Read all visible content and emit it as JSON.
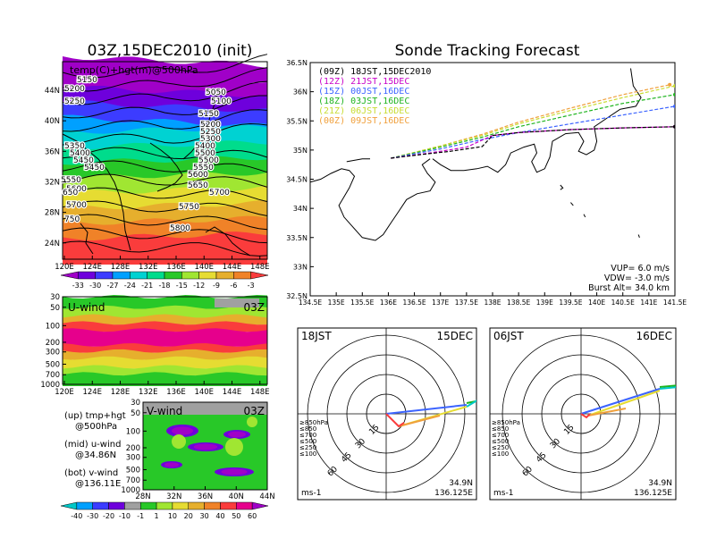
{
  "map500": {
    "title": "03Z,15DEC2010 (init)",
    "subtitle": "temp(C)+hgt(m)@500hPa",
    "xticks": [
      "120E",
      "124E",
      "128E",
      "132E",
      "136E",
      "140E",
      "144E",
      "148E"
    ],
    "yticks": [
      "44N",
      "40N",
      "36N",
      "32N",
      "28N",
      "24N"
    ],
    "contours": [
      "5150",
      "5200",
      "5250",
      "5050",
      "5100",
      "5150",
      "5200",
      "5250",
      "5300",
      "5350",
      "5400",
      "5400",
      "5450",
      "5500",
      "5500",
      "5450",
      "5550",
      "5550",
      "5600",
      "5600",
      "5650",
      "5700",
      "5700",
      "5750",
      "5800",
      "650",
      "750"
    ]
  },
  "colorbar_temp": {
    "labels": [
      "-33",
      "-30",
      "-27",
      "-24",
      "-21",
      "-18",
      "-15",
      "-12",
      "-9",
      "-6",
      "-3"
    ],
    "colors": [
      "#a000c8",
      "#6e00dc",
      "#3c3cff",
      "#00a0ff",
      "#00d2d2",
      "#00dc8c",
      "#28c828",
      "#a0e632",
      "#e6dc32",
      "#e6af2d",
      "#f08228",
      "#fa3c3c"
    ]
  },
  "uwind": {
    "label": "U-wind",
    "time": "03Z",
    "yticks": [
      "30",
      "50",
      "100",
      "200",
      "300",
      "500",
      "700",
      "1000"
    ],
    "xticks": [
      "120E",
      "124E",
      "128E",
      "132E",
      "136E",
      "140E",
      "144E",
      "148E"
    ]
  },
  "vwind": {
    "label": "V-wind",
    "time": "03Z",
    "yticks": [
      "30",
      "50",
      "100",
      "200",
      "300",
      "500",
      "700",
      "1000"
    ],
    "xticks": [
      "28N",
      "32N",
      "36N",
      "40N",
      "44N"
    ]
  },
  "legend_text": {
    "up": "(up) tmp+hgt",
    "up2": "@500hPa",
    "mid": "(mid) u-wind",
    "mid2": "@34.86N",
    "bot": "(bot) v-wind",
    "bot2": "@136.11E"
  },
  "colorbar_wind": {
    "labels": [
      "-40",
      "-30",
      "-20",
      "-10",
      "-1",
      "1",
      "10",
      "20",
      "30",
      "40",
      "50",
      "60"
    ],
    "colors": [
      "#00c8c8",
      "#00a0ff",
      "#3c3cff",
      "#6e00dc",
      "#a0a0a0",
      "#28c828",
      "#a0e632",
      "#e6dc32",
      "#e6af2d",
      "#f08228",
      "#fa3c3c",
      "#e6008c",
      "#a000c8"
    ]
  },
  "tracking": {
    "title": "Sonde Tracking Forecast",
    "yticks": [
      "36.5N",
      "36N",
      "35.5N",
      "35N",
      "34.5N",
      "34N",
      "33.5N",
      "33N",
      "32.5N"
    ],
    "xticks": [
      "134.5E",
      "135E",
      "135.5E",
      "136E",
      "136.5E",
      "137E",
      "137.5E",
      "138E",
      "138.5E",
      "139E",
      "139.5E",
      "140E",
      "140.5E",
      "141E",
      "141.5E"
    ],
    "legend": [
      {
        "label": "(09Z)  18JST,15DEC2010",
        "color": "#000000"
      },
      {
        "label": "(12Z)  21JST,15DEC",
        "color": "#c800c8"
      },
      {
        "label": "(15Z)  00JST,16DEC",
        "color": "#3c64ff"
      },
      {
        "label": "(18Z)  03JST,16DEC",
        "color": "#1eb41e"
      },
      {
        "label": "(21Z)  06JST,16DEC",
        "color": "#c8dc32"
      },
      {
        "label": "(00Z)  09JST,16DEC",
        "color": "#f0a03c"
      }
    ],
    "params": [
      "VUP=  6.0  m/s",
      "VDW= -3.0  m/s",
      "Burst Alt=  34.0  km"
    ]
  },
  "chart_data": [
    {
      "type": "line",
      "title": "Sonde Tracking Forecast",
      "xlabel": "",
      "ylabel": "",
      "xlim": [
        134.5,
        141.5
      ],
      "ylim": [
        32.5,
        36.5
      ],
      "series": [
        {
          "name": "(09Z)  18JST,15DEC2010",
          "x": [
            136.05,
            136.6,
            137.2,
            137.8,
            138.0,
            138.5,
            139.5,
            140.5,
            141.5
          ],
          "y": [
            34.86,
            34.92,
            34.98,
            35.06,
            35.25,
            35.3,
            35.35,
            35.38,
            35.4
          ]
        },
        {
          "name": "(12Z)  21JST,15DEC",
          "x": [
            136.05,
            136.8,
            137.5,
            138.0,
            138.5,
            139.5,
            140.5,
            141.5
          ],
          "y": [
            34.86,
            34.95,
            35.05,
            35.25,
            35.3,
            35.35,
            35.38,
            35.4
          ]
        },
        {
          "name": "(15Z)  00JST,16DEC",
          "x": [
            136.05,
            137.0,
            137.8,
            138.5,
            139.5,
            140.5,
            141.5
          ],
          "y": [
            34.86,
            35.02,
            35.18,
            35.3,
            35.45,
            35.6,
            35.75
          ]
        },
        {
          "name": "(18Z)  03JST,16DEC",
          "x": [
            136.05,
            137.0,
            137.8,
            138.5,
            139.5,
            140.5,
            141.5
          ],
          "y": [
            34.86,
            35.05,
            35.22,
            35.4,
            35.6,
            35.8,
            35.95
          ]
        },
        {
          "name": "(21Z)  06JST,16DEC",
          "x": [
            136.05,
            137.0,
            137.8,
            138.5,
            139.5,
            140.5,
            141.5
          ],
          "y": [
            34.86,
            35.07,
            35.25,
            35.45,
            35.68,
            35.9,
            36.1
          ]
        },
        {
          "name": "(00Z)  09JST,16DEC",
          "x": [
            136.05,
            137.0,
            137.8,
            138.5,
            139.5,
            140.5,
            141.4
          ],
          "y": [
            34.86,
            35.07,
            35.27,
            35.48,
            35.72,
            35.95,
            36.12
          ]
        }
      ]
    }
  ],
  "hodo1": {
    "time": "18JST",
    "date": "15DEC",
    "lat": "34.9N",
    "lon": "136.125E",
    "unit": "ms-1",
    "rings": [
      "15",
      "30",
      "45",
      "60"
    ],
    "levels": [
      {
        "label": "≥850hPa",
        "color": "#fa3c3c"
      },
      {
        "label": "≤850",
        "color": "#f0a03c"
      },
      {
        "label": "≤700",
        "color": "#e6dc32"
      },
      {
        "label": "≤500",
        "color": "#1eb41e"
      },
      {
        "label": "≤250",
        "color": "#00c8c8"
      },
      {
        "label": "≤100",
        "color": "#3c64ff"
      }
    ]
  },
  "hodo2": {
    "time": "06JST",
    "date": "16DEC",
    "lat": "34.9N",
    "lon": "136.125E",
    "unit": "ms-1",
    "rings": [
      "15",
      "30",
      "45",
      "60"
    ],
    "levels": [
      {
        "label": "≥850hPa",
        "color": "#fa3c3c"
      },
      {
        "label": "≤850",
        "color": "#f0a03c"
      },
      {
        "label": "≤700",
        "color": "#e6dc32"
      },
      {
        "label": "≤500",
        "color": "#1eb41e"
      },
      {
        "label": "≤250",
        "color": "#00c8c8"
      },
      {
        "label": "≤100",
        "color": "#3c64ff"
      }
    ]
  }
}
